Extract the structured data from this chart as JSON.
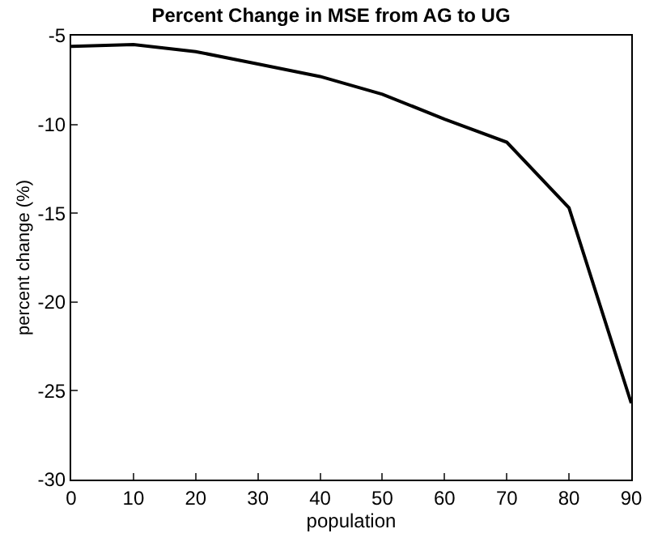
{
  "chart_data": {
    "type": "line",
    "title": "Percent Change in MSE from AG to UG",
    "xlabel": "population",
    "ylabel": "percent change (%)",
    "x": [
      0,
      10,
      20,
      30,
      40,
      50,
      60,
      70,
      80,
      90
    ],
    "series": [
      {
        "color": "#000000",
        "values": [
          -5.6,
          -5.5,
          -5.9,
          -6.6,
          -7.3,
          -8.3,
          -9.7,
          -11.0,
          -14.7,
          -25.7
        ]
      }
    ],
    "xlim": [
      0,
      90
    ],
    "xticks": [
      0,
      10,
      20,
      30,
      40,
      50,
      60,
      70,
      80,
      90
    ],
    "ylim": [
      -30,
      -5
    ],
    "yticks": [
      -30,
      -25,
      -20,
      -15,
      -10,
      -5
    ],
    "marker": "none",
    "line_style": "solid"
  }
}
